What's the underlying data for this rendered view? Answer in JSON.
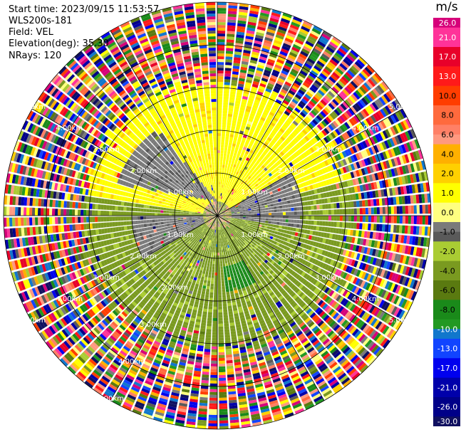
{
  "info": {
    "start_time": "Start time: 2023/09/15 11:53:57",
    "instrument": "WLS200s-181",
    "field": "Field: VEL",
    "elevation": "Elevation(deg): 35.30",
    "nrays": "NRays: 120"
  },
  "chart_data": {
    "type": "heatmap",
    "subtype": "radar-ppi",
    "field": "VEL",
    "units": "m/s",
    "nrays": 120,
    "range_unit": "km",
    "range_rings_km": [
      1.0,
      2.0,
      3.0,
      4.0,
      5.0
    ],
    "max_range_km": 5.0,
    "ring_label_text": [
      "1.00km",
      "2.00km",
      "3.00km",
      "4.00km",
      "5.00km"
    ],
    "colorbar": {
      "title": "m/s",
      "range": [
        -30.0,
        26.0
      ],
      "ticks": [
        "26.0",
        "21.0",
        "17.0",
        "13.0",
        "10.0",
        "8.0",
        "6.0",
        "4.0",
        "2.0",
        "1.0",
        "0.0",
        "-1.0",
        "-2.0",
        "-4.0",
        "-6.0",
        "-8.0",
        "-10.0",
        "-13.0",
        "-17.0",
        "-21.0",
        "-26.0",
        "-30.0"
      ],
      "colors": [
        "#d6007a",
        "#ff3399",
        "#e8002a",
        "#ff1a1a",
        "#ff3d00",
        "#ff6a3d",
        "#ff8066",
        "#ff9980",
        "#ffb000",
        "#ffd000",
        "#ffff00",
        "#ffff80",
        "#7a7a7a",
        "#5a5a5a",
        "#aacc33",
        "#7a9a20",
        "#5a7a10",
        "#1a8a1a",
        "#229922",
        "#1177cc",
        "#1144ff",
        "#0000ee",
        "#0000aa",
        "#000088",
        "#101060"
      ]
    },
    "regions": [
      {
        "description": "near-range positive velocity",
        "value": 2.0
      },
      {
        "description": "near-range negative velocity",
        "value": -2.0
      },
      {
        "description": "near-zero velocity band",
        "value": 0.0
      },
      {
        "description": "strong negative core",
        "value": -6.0
      }
    ]
  }
}
